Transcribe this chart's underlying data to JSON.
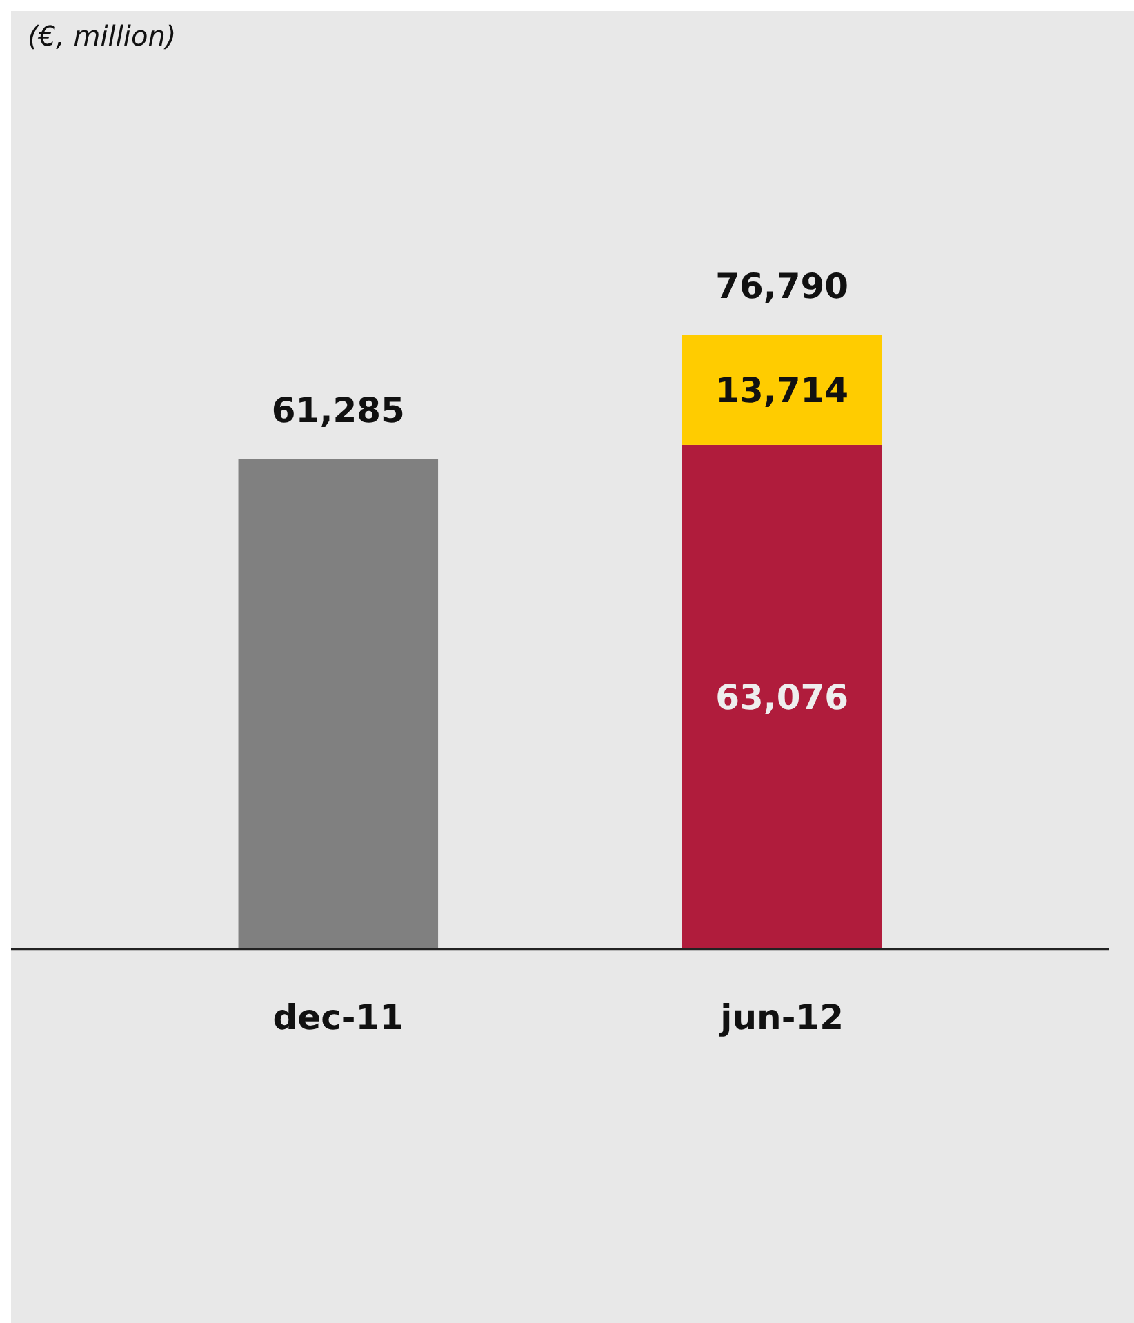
{
  "chart_data": {
    "type": "bar",
    "annotations": [
      "(€, million)"
    ],
    "categories": [
      "dec-11",
      "jun-12"
    ],
    "stacked": true,
    "series": [
      {
        "colors": [
          "#808080",
          "#b01c3c"
        ],
        "values": [
          61285,
          63076
        ],
        "value_labels": [
          null,
          "63,076"
        ]
      },
      {
        "color": "#ffcc00",
        "values": [
          null,
          13714
        ],
        "value_labels": [
          null,
          "13,714"
        ]
      }
    ],
    "totals": [
      "61,285",
      "76,790"
    ]
  }
}
